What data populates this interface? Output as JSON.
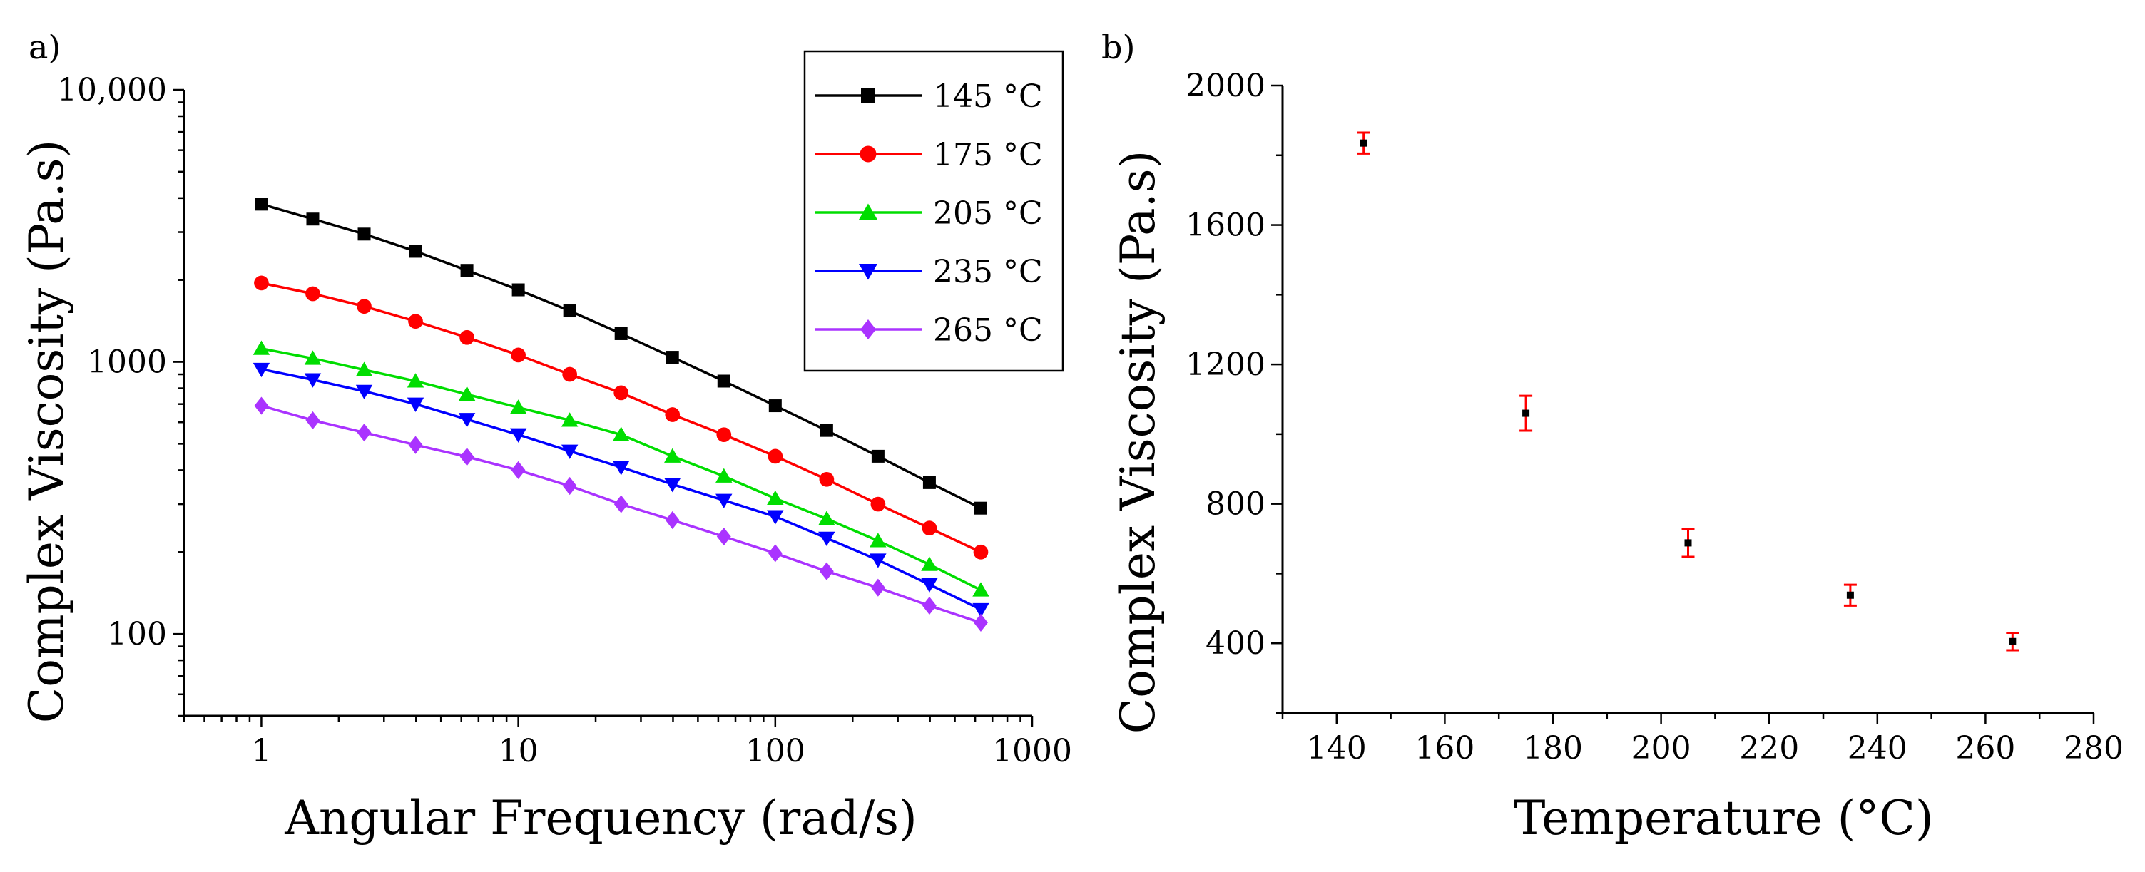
{
  "panels": {
    "a_label": "a)",
    "b_label": "b)"
  },
  "chart_data": [
    {
      "type": "line",
      "xlabel": "Angular Frequency (rad/s)",
      "ylabel": "Complex Viscosity (Pa.s)",
      "xscale": "log",
      "yscale": "log",
      "xlim": [
        0.5,
        1000
      ],
      "ylim": [
        50,
        10000
      ],
      "xticks": [
        {
          "value": 1,
          "label": "1"
        },
        {
          "value": 10,
          "label": "10"
        },
        {
          "value": 100,
          "label": "100"
        },
        {
          "value": 1000,
          "label": "1000"
        }
      ],
      "yticks": [
        {
          "value": 100,
          "label": "100"
        },
        {
          "value": 1000,
          "label": "1000"
        },
        {
          "value": 10000,
          "label": "10,000"
        }
      ],
      "grid": false,
      "legend_position": "top-right",
      "x": [
        1,
        1.585,
        2.512,
        3.981,
        6.31,
        10,
        15.85,
        25.12,
        39.81,
        63.1,
        100,
        158.5,
        251.2,
        398.1,
        631
      ],
      "series": [
        {
          "name": "145 °C",
          "color": "#000000",
          "marker": "square",
          "values": [
            3800,
            3350,
            2950,
            2550,
            2170,
            1840,
            1540,
            1270,
            1040,
            850,
            690,
            560,
            450,
            360,
            290
          ]
        },
        {
          "name": "175 °C",
          "color": "#ff0000",
          "marker": "circle",
          "values": [
            1950,
            1780,
            1600,
            1410,
            1230,
            1060,
            900,
            770,
            640,
            540,
            450,
            370,
            300,
            245,
            200
          ]
        },
        {
          "name": "205 °C",
          "color": "#00dd00",
          "marker": "triangle-up",
          "values": [
            1120,
            1030,
            935,
            850,
            760,
            680,
            610,
            540,
            450,
            380,
            315,
            265,
            220,
            180,
            145
          ]
        },
        {
          "name": "235 °C",
          "color": "#0000ff",
          "marker": "triangle-down",
          "values": [
            940,
            860,
            780,
            700,
            615,
            540,
            470,
            410,
            355,
            310,
            270,
            225,
            187,
            152,
            123
          ]
        },
        {
          "name": "265 °C",
          "color": "#aa33ff",
          "marker": "diamond",
          "values": [
            690,
            610,
            550,
            495,
            448,
            400,
            350,
            300,
            262,
            228,
            198,
            170,
            148,
            127,
            110
          ]
        }
      ]
    },
    {
      "type": "scatter",
      "xlabel": "Temperature (°C)",
      "ylabel": "Complex Viscosity (Pa.s)",
      "xlim": [
        130,
        280
      ],
      "ylim": [
        200,
        2000
      ],
      "xticks": [
        {
          "value": 140,
          "label": "140"
        },
        {
          "value": 160,
          "label": "160"
        },
        {
          "value": 180,
          "label": "180"
        },
        {
          "value": 200,
          "label": "200"
        },
        {
          "value": 220,
          "label": "220"
        },
        {
          "value": 240,
          "label": "240"
        },
        {
          "value": 260,
          "label": "260"
        },
        {
          "value": 280,
          "label": "280"
        }
      ],
      "yticks": [
        {
          "value": 400,
          "label": "400"
        },
        {
          "value": 800,
          "label": "800"
        },
        {
          "value": 1200,
          "label": "1200"
        },
        {
          "value": 1600,
          "label": "1600"
        },
        {
          "value": 2000,
          "label": "2000"
        }
      ],
      "grid": false,
      "marker_color": "#000000",
      "errorbar_color": "#ff0000",
      "x": [
        145,
        175,
        205,
        235,
        265
      ],
      "values": [
        1835,
        1060,
        688,
        538,
        405
      ],
      "errors": [
        30,
        50,
        40,
        30,
        25
      ]
    }
  ]
}
